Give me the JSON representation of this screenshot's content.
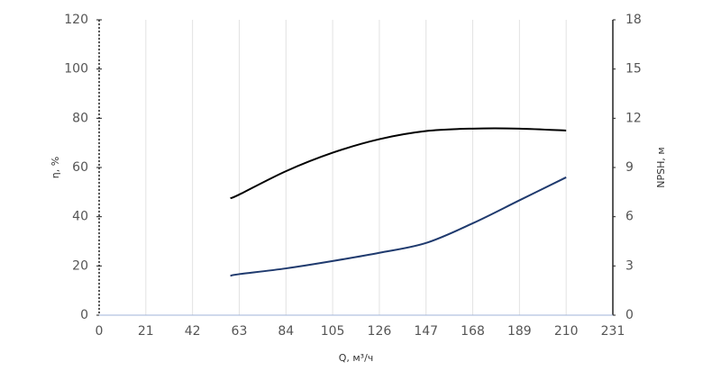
{
  "chart_data": {
    "type": "line",
    "x_label": "Q, м³/ч",
    "y_label": "η, %",
    "y2_label": "NPSH, м",
    "x": [
      59,
      63,
      84,
      105,
      126,
      147,
      168,
      189,
      210
    ],
    "series": [
      {
        "name": "η",
        "color": "#000000",
        "values": [
          47.5,
          49,
          58.5,
          66,
          71.5,
          74.8,
          75.8,
          75.8,
          75
        ]
      },
      {
        "name": "NPSH",
        "color": "#1f3a6e",
        "axis": "y2",
        "values": [
          2.4,
          2.5,
          2.85,
          3.3,
          3.8,
          4.4,
          5.6,
          7.0,
          8.4
        ]
      }
    ],
    "xlim": [
      0,
      231
    ],
    "xticks": [
      0,
      21,
      42,
      63,
      84,
      105,
      126,
      147,
      168,
      189,
      210,
      231
    ],
    "ylim": [
      0,
      120
    ],
    "yticks": [
      0,
      20,
      40,
      60,
      80,
      100,
      120
    ],
    "y2lim": [
      0,
      18
    ],
    "y2ticks": [
      0,
      3,
      6,
      9,
      12,
      15,
      18
    ],
    "grid": true
  }
}
